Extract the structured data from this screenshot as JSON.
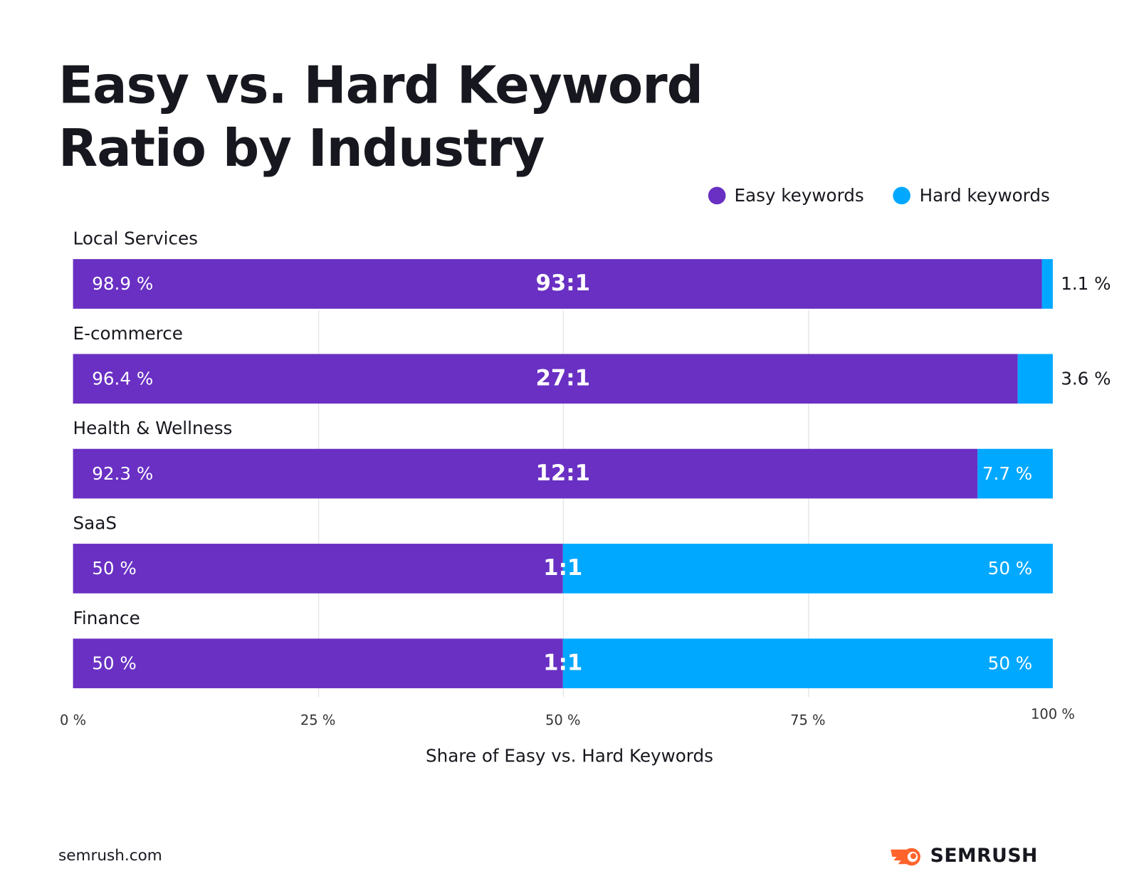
{
  "chart_data": {
    "type": "bar",
    "orientation": "horizontal",
    "stacked": true,
    "title": "Easy vs. Hard Keyword Ratio by Industry",
    "xlabel": "Share of Easy vs. Hard Keywords",
    "xlim": [
      0,
      100
    ],
    "xticks": [
      "0 %",
      "25 %",
      "50 %",
      "75 %",
      "100 %"
    ],
    "grid": true,
    "legend_position": "top-right",
    "categories": [
      "Local Services",
      "E-commerce",
      "Health & Wellness",
      "SaaS",
      "Finance"
    ],
    "ratios": [
      "93:1",
      "27:1",
      "12:1",
      "1:1",
      "1:1"
    ],
    "series": [
      {
        "name": "Easy keywords",
        "color": "#6930c3",
        "values": [
          98.9,
          96.4,
          92.3,
          50,
          50
        ],
        "labels": [
          "98.9 %",
          "96.4 %",
          "92.3 %",
          "50 %",
          "50 %"
        ]
      },
      {
        "name": "Hard keywords",
        "color": "#00a8ff",
        "values": [
          1.1,
          3.6,
          7.7,
          50,
          50
        ],
        "labels": [
          "1.1 %",
          "3.6 %",
          "7.7 %",
          "50 %",
          "50 %"
        ]
      }
    ]
  },
  "footer": {
    "source": "semrush.com",
    "logo": "SEMRUSH"
  }
}
